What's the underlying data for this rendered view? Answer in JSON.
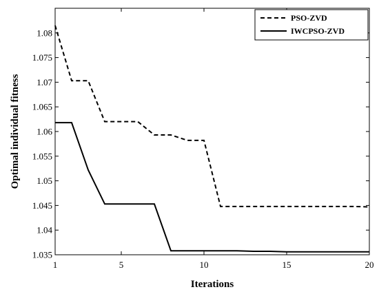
{
  "chart_data": {
    "type": "line",
    "title": "",
    "xlabel": "Iterations",
    "ylabel": "Optimal individual fitness",
    "xlim": [
      1,
      20
    ],
    "ylim": [
      1.035,
      1.085
    ],
    "x_ticks": [
      1,
      5,
      10,
      15,
      20
    ],
    "x_tick_labels": [
      "1",
      "5",
      "10",
      "15",
      "20"
    ],
    "y_ticks": [
      1.035,
      1.04,
      1.045,
      1.05,
      1.055,
      1.06,
      1.065,
      1.07,
      1.075,
      1.08
    ],
    "y_tick_labels": [
      "1.035",
      "1.04",
      "1.045",
      "1.05",
      "1.055",
      "1.06",
      "1.065",
      "1.07",
      "1.075",
      "1.08"
    ],
    "grid": false,
    "legend_position": "top-right",
    "series": [
      {
        "name": "PSO-ZVD",
        "style": "dashed",
        "color": "#000000",
        "x": [
          1,
          2,
          3,
          4,
          5,
          6,
          7,
          8,
          9,
          10,
          11,
          12,
          13,
          14,
          15,
          16,
          17,
          18,
          19,
          20
        ],
        "y": [
          1.0815,
          1.0703,
          1.0703,
          1.062,
          1.062,
          1.062,
          1.0593,
          1.0593,
          1.0582,
          1.0582,
          1.0448,
          1.0448,
          1.0448,
          1.0448,
          1.0448,
          1.0448,
          1.0448,
          1.0448,
          1.0448,
          1.0447
        ]
      },
      {
        "name": "IWCPSO-ZVD",
        "style": "solid",
        "color": "#000000",
        "x": [
          1,
          2,
          3,
          4,
          5,
          6,
          7,
          8,
          9,
          10,
          11,
          12,
          13,
          14,
          15,
          16,
          17,
          18,
          19,
          20
        ],
        "y": [
          1.0618,
          1.0618,
          1.0522,
          1.0453,
          1.0453,
          1.0453,
          1.0453,
          1.0358,
          1.0358,
          1.0358,
          1.0358,
          1.0358,
          1.0357,
          1.0357,
          1.0356,
          1.0356,
          1.0356,
          1.0356,
          1.0356,
          1.0356
        ]
      }
    ]
  }
}
